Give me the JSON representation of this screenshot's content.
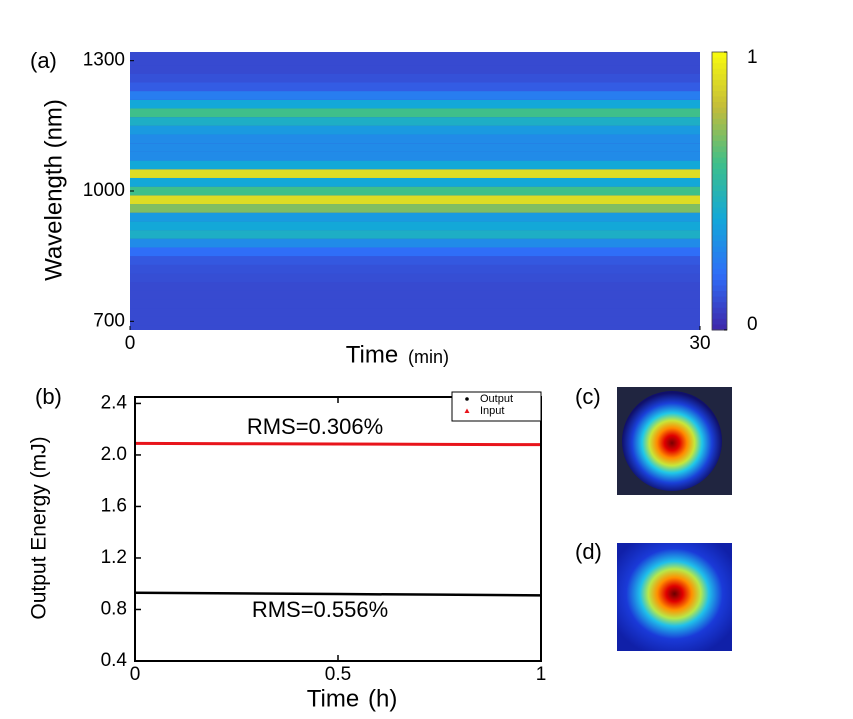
{
  "chart_data": [
    {
      "type": "heatmap",
      "label": "(a)",
      "x_label": "Time",
      "x_unit": "(min)",
      "y_label": "Wavelength (nm)",
      "xlim": [
        0,
        30
      ],
      "xticks": [
        0,
        30
      ],
      "ylim": [
        680,
        1320
      ],
      "yticks": [
        700,
        1000,
        1300
      ],
      "colormap": "parula",
      "clim": [
        0,
        1
      ],
      "cticks": [
        0,
        1
      ],
      "y": [
        680,
        700,
        720,
        740,
        760,
        780,
        800,
        820,
        840,
        860,
        880,
        900,
        920,
        940,
        960,
        980,
        1000,
        1020,
        1040,
        1060,
        1080,
        1100,
        1120,
        1140,
        1160,
        1180,
        1200,
        1220,
        1240,
        1260,
        1280,
        1300,
        1320
      ],
      "intensity": [
        0.1,
        0.1,
        0.1,
        0.1,
        0.1,
        0.1,
        0.11,
        0.12,
        0.14,
        0.2,
        0.3,
        0.45,
        0.4,
        0.35,
        0.7,
        0.9,
        0.6,
        0.4,
        0.9,
        0.4,
        0.3,
        0.3,
        0.3,
        0.35,
        0.45,
        0.6,
        0.4,
        0.25,
        0.15,
        0.12,
        0.1,
        0.1,
        0.1
      ]
    },
    {
      "type": "line",
      "label": "(b)",
      "x_label": "Time",
      "x_unit": "(h)",
      "y_label": "Output Energy (mJ)",
      "xlim": [
        0,
        1
      ],
      "xticks": [
        0,
        0.5,
        1
      ],
      "ylim": [
        0.4,
        2.45
      ],
      "yticks": [
        0.4,
        0.8,
        1.2,
        1.6,
        {
          "value": 2,
          "label": "2.0"
        },
        2.4
      ],
      "legend": "upper right",
      "x": [
        0,
        0.25,
        0.5,
        0.75,
        1
      ],
      "series": [
        {
          "name": "Output",
          "color": "#000000",
          "values": [
            0.93,
            0.925,
            0.92,
            0.915,
            0.91
          ]
        },
        {
          "name": "Input",
          "color": "#e8141b",
          "values": [
            2.09,
            2.087,
            2.085,
            2.082,
            2.08
          ]
        }
      ],
      "annotations": [
        "RMS=0.306%",
        "RMS=0.556%"
      ]
    }
  ],
  "images": [
    {
      "label": "(c)"
    },
    {
      "label": "(d)"
    }
  ]
}
